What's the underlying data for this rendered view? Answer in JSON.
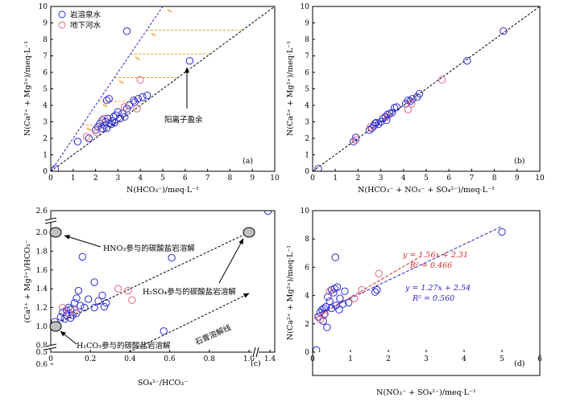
{
  "legend": {
    "karst_spring": {
      "label": "岩溶泉水",
      "color": "#2b2bd0"
    },
    "underground_river": {
      "label": "地下河水",
      "color": "#e0667a"
    }
  },
  "colors": {
    "guide_orange": "#f0a030",
    "fit_red": "#d42a2a",
    "fit_blue": "#2626c8",
    "node_fill": "#bfbfbf"
  },
  "chart_data": [
    {
      "id": "a",
      "type": "scatter",
      "panel_label": "(a)",
      "xlabel": "N(HCO₃⁻)/meq·L⁻¹",
      "ylabel": "N(Ca²⁺ + Mg²⁺)/meq·L⁻¹",
      "xlim": [
        0,
        10
      ],
      "ylim": [
        0,
        10
      ],
      "xticks": [
        "0",
        "1",
        "2",
        "3",
        "4",
        "5",
        "6",
        "7",
        "8",
        "9",
        "10"
      ],
      "yticks": [
        "0",
        "1",
        "2",
        "3",
        "4",
        "5",
        "6",
        "7",
        "8",
        "9",
        "10"
      ],
      "reference_lines": [
        "y = x",
        "y = 2x"
      ],
      "annotation": "阳离子盈余",
      "series": [
        {
          "name": "岩溶泉水",
          "points": [
            [
              0.2,
              0.15
            ],
            [
              1.2,
              1.8
            ],
            [
              1.7,
              2.0
            ],
            [
              2.0,
              2.5
            ],
            [
              2.1,
              2.7
            ],
            [
              2.2,
              2.9
            ],
            [
              2.3,
              3.1
            ],
            [
              2.3,
              2.6
            ],
            [
              2.4,
              2.8
            ],
            [
              2.45,
              3.0
            ],
            [
              2.5,
              2.6
            ],
            [
              2.55,
              3.2
            ],
            [
              2.6,
              2.9
            ],
            [
              2.7,
              2.85
            ],
            [
              2.75,
              3.05
            ],
            [
              2.8,
              3.3
            ],
            [
              2.85,
              2.95
            ],
            [
              2.9,
              3.4
            ],
            [
              3.0,
              3.6
            ],
            [
              3.1,
              3.2
            ],
            [
              3.2,
              3.5
            ],
            [
              3.3,
              3.3
            ],
            [
              3.4,
              3.8
            ],
            [
              3.5,
              4.0
            ],
            [
              3.7,
              4.3
            ],
            [
              3.75,
              4.2
            ],
            [
              3.9,
              4.4
            ],
            [
              4.1,
              4.5
            ],
            [
              4.3,
              4.6
            ],
            [
              2.5,
              4.3
            ],
            [
              2.6,
              4.4
            ],
            [
              3.4,
              8.5
            ],
            [
              6.2,
              6.7
            ]
          ]
        },
        {
          "name": "地下河水",
          "points": [
            [
              1.6,
              2.1
            ],
            [
              2.05,
              2.35
            ],
            [
              2.4,
              3.2
            ],
            [
              3.3,
              3.9
            ],
            [
              3.85,
              3.8
            ],
            [
              4.0,
              5.55
            ]
          ]
        }
      ]
    },
    {
      "id": "b",
      "type": "scatter",
      "panel_label": "(b)",
      "xlabel": "N(HCO₃⁻ + NO₃⁻ + SO₄²⁻)/meq·L⁻¹",
      "ylabel": "N(Ca²⁺ + Mg²⁺)/meq·L⁻¹",
      "xlim": [
        0,
        10
      ],
      "ylim": [
        0,
        10
      ],
      "xticks": [
        "0",
        "1",
        "2",
        "3",
        "4",
        "5",
        "6",
        "7",
        "8",
        "9",
        "10"
      ],
      "yticks": [
        "0",
        "1",
        "2",
        "3",
        "4",
        "5",
        "6",
        "7",
        "8",
        "9",
        "10"
      ],
      "reference_lines": [
        "y = x"
      ],
      "series": [
        {
          "name": "岩溶泉水",
          "points": [
            [
              0.25,
              0.15
            ],
            [
              1.8,
              1.8
            ],
            [
              1.9,
              2.05
            ],
            [
              2.5,
              2.5
            ],
            [
              2.6,
              2.6
            ],
            [
              2.7,
              2.75
            ],
            [
              2.75,
              2.9
            ],
            [
              2.8,
              2.95
            ],
            [
              2.9,
              2.85
            ],
            [
              3.0,
              3.0
            ],
            [
              3.1,
              3.2
            ],
            [
              3.2,
              3.3
            ],
            [
              3.25,
              3.1
            ],
            [
              3.3,
              3.45
            ],
            [
              3.4,
              3.5
            ],
            [
              3.5,
              3.55
            ],
            [
              3.6,
              3.85
            ],
            [
              3.7,
              3.9
            ],
            [
              4.1,
              4.1
            ],
            [
              4.2,
              4.3
            ],
            [
              4.3,
              4.25
            ],
            [
              4.4,
              4.4
            ],
            [
              4.6,
              4.5
            ],
            [
              4.7,
              4.7
            ],
            [
              6.8,
              6.7
            ],
            [
              8.4,
              8.5
            ]
          ]
        },
        {
          "name": "地下河水",
          "points": [
            [
              1.9,
              1.9
            ],
            [
              2.55,
              2.7
            ],
            [
              3.3,
              3.3
            ],
            [
              4.2,
              3.75
            ],
            [
              4.35,
              4.1
            ],
            [
              5.7,
              5.55
            ]
          ]
        }
      ]
    },
    {
      "id": "c",
      "type": "scatter",
      "panel_label": "(c)",
      "xlabel": "SO₄²⁻/HCO₃⁻",
      "ylabel": "(Ca²⁺ + Mg²⁺)/HCO₃⁻",
      "xlim": [
        0,
        1.4
      ],
      "ylim": [
        0.5,
        2.6
      ],
      "xticks": [
        "0",
        "0.2",
        "0.4",
        "0.6",
        "0.8",
        "1.0",
        "1.4"
      ],
      "yticks": [
        "0.5",
        "0.6",
        "0.8",
        "1.0",
        "1.2",
        "1.4",
        "1.6",
        "1.8",
        "2.0",
        "2.6"
      ],
      "axis_breaks": true,
      "end_members": [
        {
          "label": "HNO₃参与的碳酸盐岩溶解",
          "x": 0,
          "y": 2.0
        },
        {
          "label": "H₂SO₄参与的碳酸盐岩溶解",
          "x": 1.0,
          "y": 2.0
        },
        {
          "label": "H₂CO₃参与的碳酸盐岩溶解",
          "x": 0,
          "y": 1.0
        }
      ],
      "gypsum_label": "石膏溶解线",
      "series": [
        {
          "name": "岩溶泉水",
          "points": [
            [
              0.02,
              1.05
            ],
            [
              0.05,
              1.1
            ],
            [
              0.06,
              1.15
            ],
            [
              0.07,
              1.08
            ],
            [
              0.08,
              1.17
            ],
            [
              0.08,
              1.12
            ],
            [
              0.09,
              1.2
            ],
            [
              0.1,
              1.18
            ],
            [
              0.1,
              1.09
            ],
            [
              0.11,
              1.12
            ],
            [
              0.12,
              1.25
            ],
            [
              0.13,
              1.3
            ],
            [
              0.13,
              1.14
            ],
            [
              0.14,
              1.38
            ],
            [
              0.15,
              1.22
            ],
            [
              0.16,
              1.74
            ],
            [
              0.17,
              1.2
            ],
            [
              0.19,
              1.29
            ],
            [
              0.22,
              1.47
            ],
            [
              0.22,
              1.2
            ],
            [
              0.24,
              1.27
            ],
            [
              0.26,
              1.33
            ],
            [
              0.27,
              1.21
            ],
            [
              0.28,
              1.25
            ],
            [
              0.57,
              0.95
            ],
            [
              0.61,
              1.73
            ],
            [
              1.38,
              2.55
            ]
          ]
        },
        {
          "name": "地下河水",
          "points": [
            [
              0.06,
              1.2
            ],
            [
              0.09,
              1.14
            ],
            [
              0.12,
              1.17
            ],
            [
              0.34,
              1.4
            ],
            [
              0.39,
              1.38
            ],
            [
              0.41,
              1.28
            ]
          ]
        }
      ]
    },
    {
      "id": "d",
      "type": "scatter",
      "panel_label": "(d)",
      "xlabel": "N(NO₃⁻ + SO₄²⁻)/meq·L⁻¹",
      "ylabel": "N(Ca²⁺ + Mg²⁺)/meq·L⁻¹",
      "xlim": [
        0,
        6
      ],
      "ylim": [
        0,
        10
      ],
      "xticks": [
        "0",
        "1",
        "2",
        "3",
        "4",
        "5",
        "6"
      ],
      "yticks": [
        "0",
        "2",
        "4",
        "6",
        "8",
        "10"
      ],
      "fits": [
        {
          "name": "地下河水",
          "equation": "y = 1.56x + 2.31",
          "r2": "R² = 0.466",
          "slope": 1.56,
          "intercept": 2.31,
          "x_range": [
            0.05,
            2.85
          ]
        },
        {
          "name": "岩溶泉水",
          "equation": "y = 1.27x + 2.54",
          "r2": "R² = 0.560",
          "slope": 1.27,
          "intercept": 2.54,
          "x_range": [
            0.05,
            5.0
          ]
        }
      ],
      "series": [
        {
          "name": "岩溶泉水",
          "points": [
            [
              0.1,
              0.15
            ],
            [
              0.15,
              2.5
            ],
            [
              0.2,
              2.8
            ],
            [
              0.25,
              3.0
            ],
            [
              0.28,
              2.2
            ],
            [
              0.3,
              3.1
            ],
            [
              0.32,
              2.7
            ],
            [
              0.35,
              3.2
            ],
            [
              0.38,
              1.75
            ],
            [
              0.4,
              3.9
            ],
            [
              0.45,
              3.6
            ],
            [
              0.5,
              3.1
            ],
            [
              0.5,
              4.4
            ],
            [
              0.55,
              4.2
            ],
            [
              0.58,
              4.5
            ],
            [
              0.6,
              6.7
            ],
            [
              0.62,
              3.3
            ],
            [
              0.65,
              4.6
            ],
            [
              0.7,
              3.0
            ],
            [
              0.72,
              3.8
            ],
            [
              0.8,
              3.4
            ],
            [
              0.85,
              4.3
            ],
            [
              0.95,
              3.5
            ],
            [
              1.65,
              4.25
            ],
            [
              1.7,
              4.4
            ],
            [
              5.0,
              8.5
            ]
          ]
        },
        {
          "name": "地下河水",
          "points": [
            [
              0.2,
              2.3
            ],
            [
              0.3,
              2.6
            ],
            [
              0.45,
              4.3
            ],
            [
              1.1,
              3.8
            ],
            [
              1.3,
              4.4
            ],
            [
              1.75,
              5.55
            ]
          ]
        }
      ]
    }
  ]
}
